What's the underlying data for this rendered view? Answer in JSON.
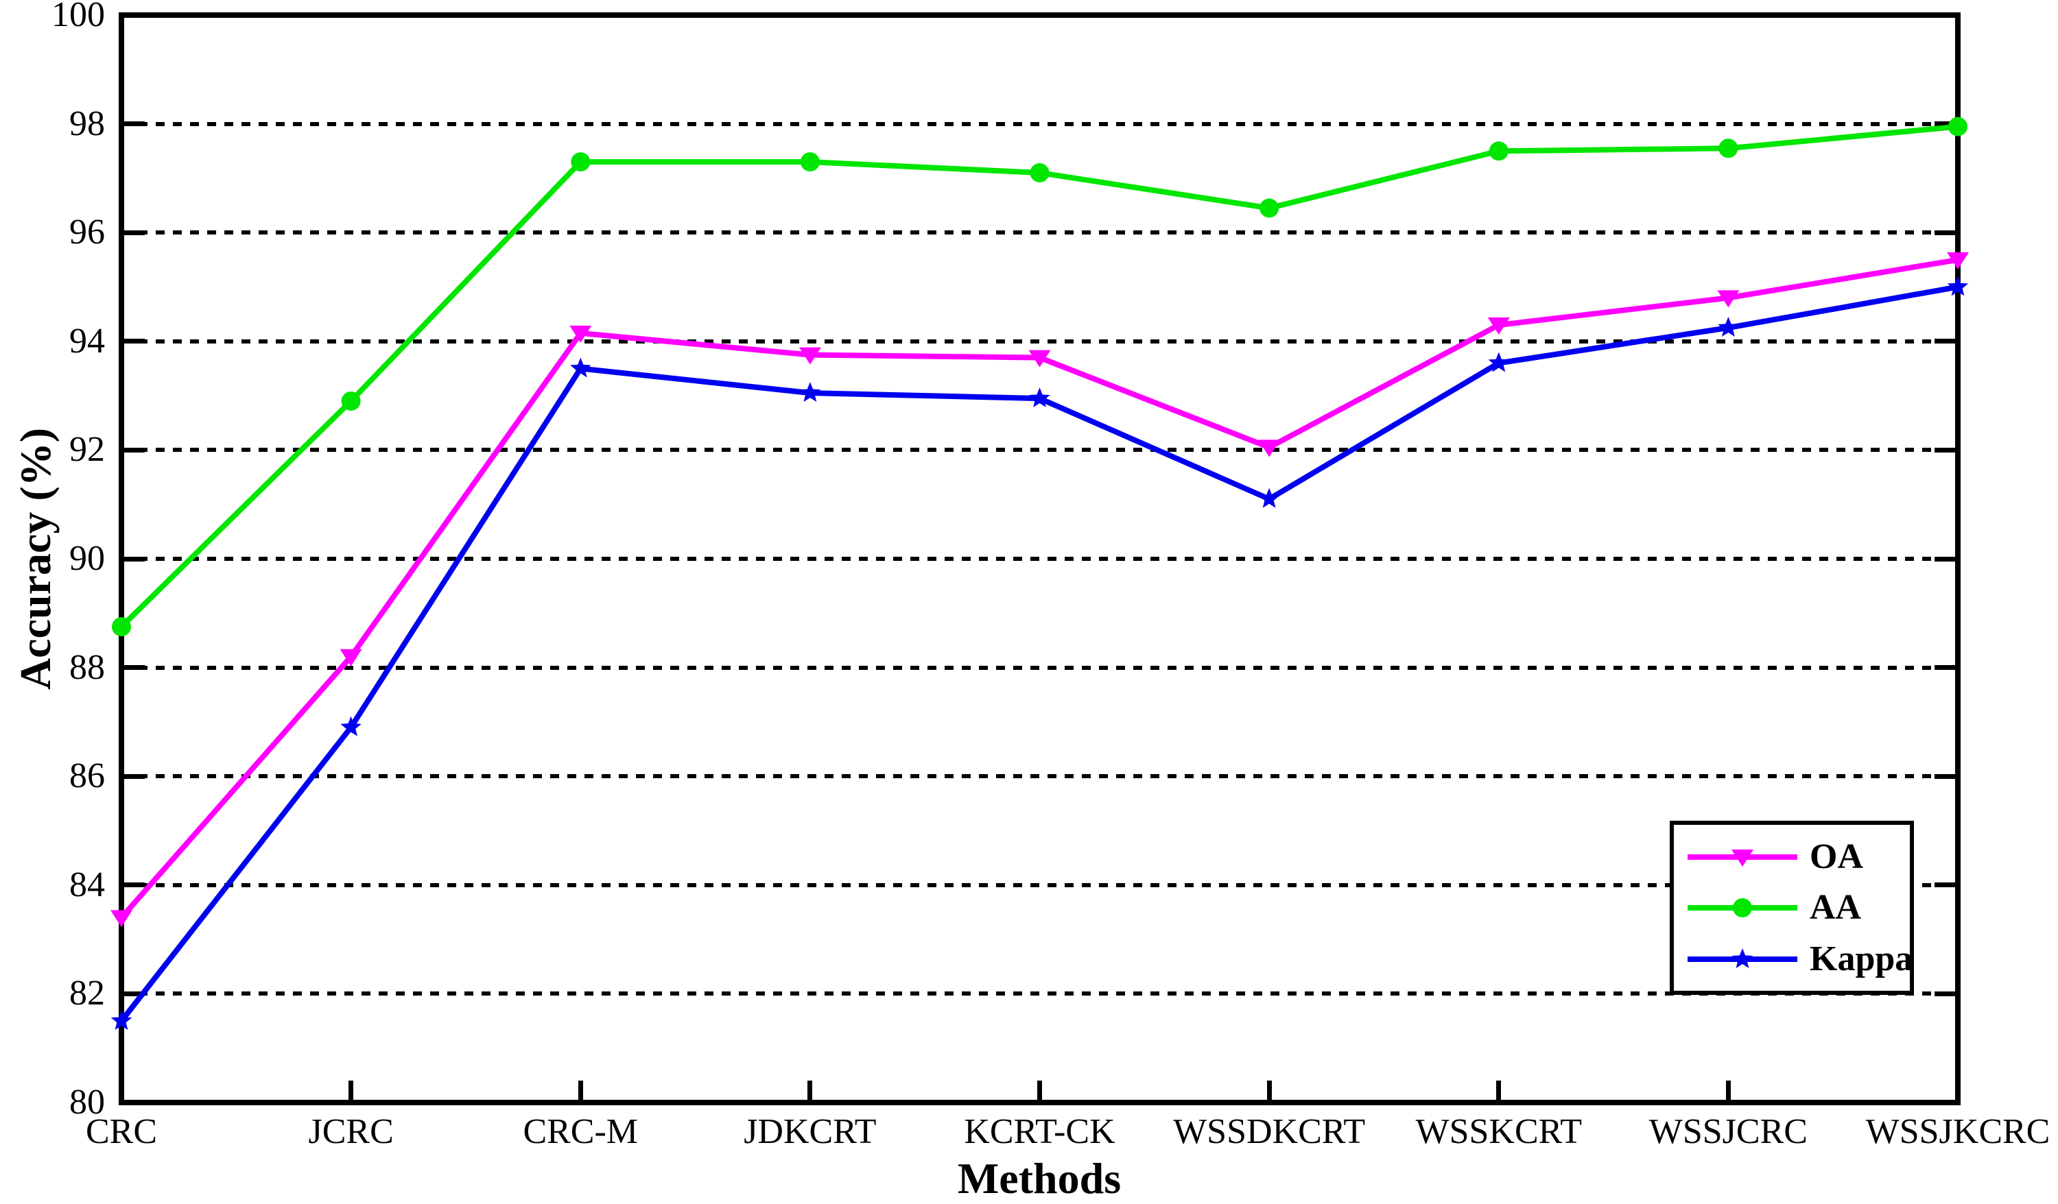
{
  "chart_data": {
    "type": "line",
    "title": "",
    "xlabel": "Methods",
    "ylabel": "Accuracy (%)",
    "categories": [
      "CRC",
      "JCRC",
      "CRC-M",
      "JDKCRT",
      "KCRT-CK",
      "WSSDKCRT",
      "WSSKCRT",
      "WSSJCRC",
      "WSSJKCRC"
    ],
    "series": [
      {
        "name": "OA",
        "color": "#FF00FF",
        "marker": "triangle-down",
        "values": [
          83.4,
          88.2,
          94.15,
          93.75,
          93.7,
          92.05,
          94.3,
          94.8,
          95.5
        ]
      },
      {
        "name": "AA",
        "color": "#00E600",
        "marker": "circle",
        "values": [
          88.75,
          92.9,
          97.3,
          97.3,
          97.1,
          96.45,
          97.5,
          97.55,
          97.95
        ]
      },
      {
        "name": "Kappa",
        "color": "#0000F0",
        "marker": "star",
        "values": [
          81.5,
          86.9,
          93.5,
          93.05,
          92.95,
          91.1,
          93.6,
          94.25,
          95.0
        ]
      }
    ],
    "ylim": [
      80,
      100
    ],
    "yticks": [
      80,
      82,
      84,
      86,
      88,
      90,
      92,
      94,
      96,
      98,
      100
    ],
    "gridline_values": [
      82,
      84,
      86,
      88,
      90,
      92,
      94,
      96,
      98
    ],
    "grid_style": "horizontal-dashed",
    "legend_position": "lower-right",
    "axis_color": "#000000",
    "background_color": "#FFFFFF"
  }
}
